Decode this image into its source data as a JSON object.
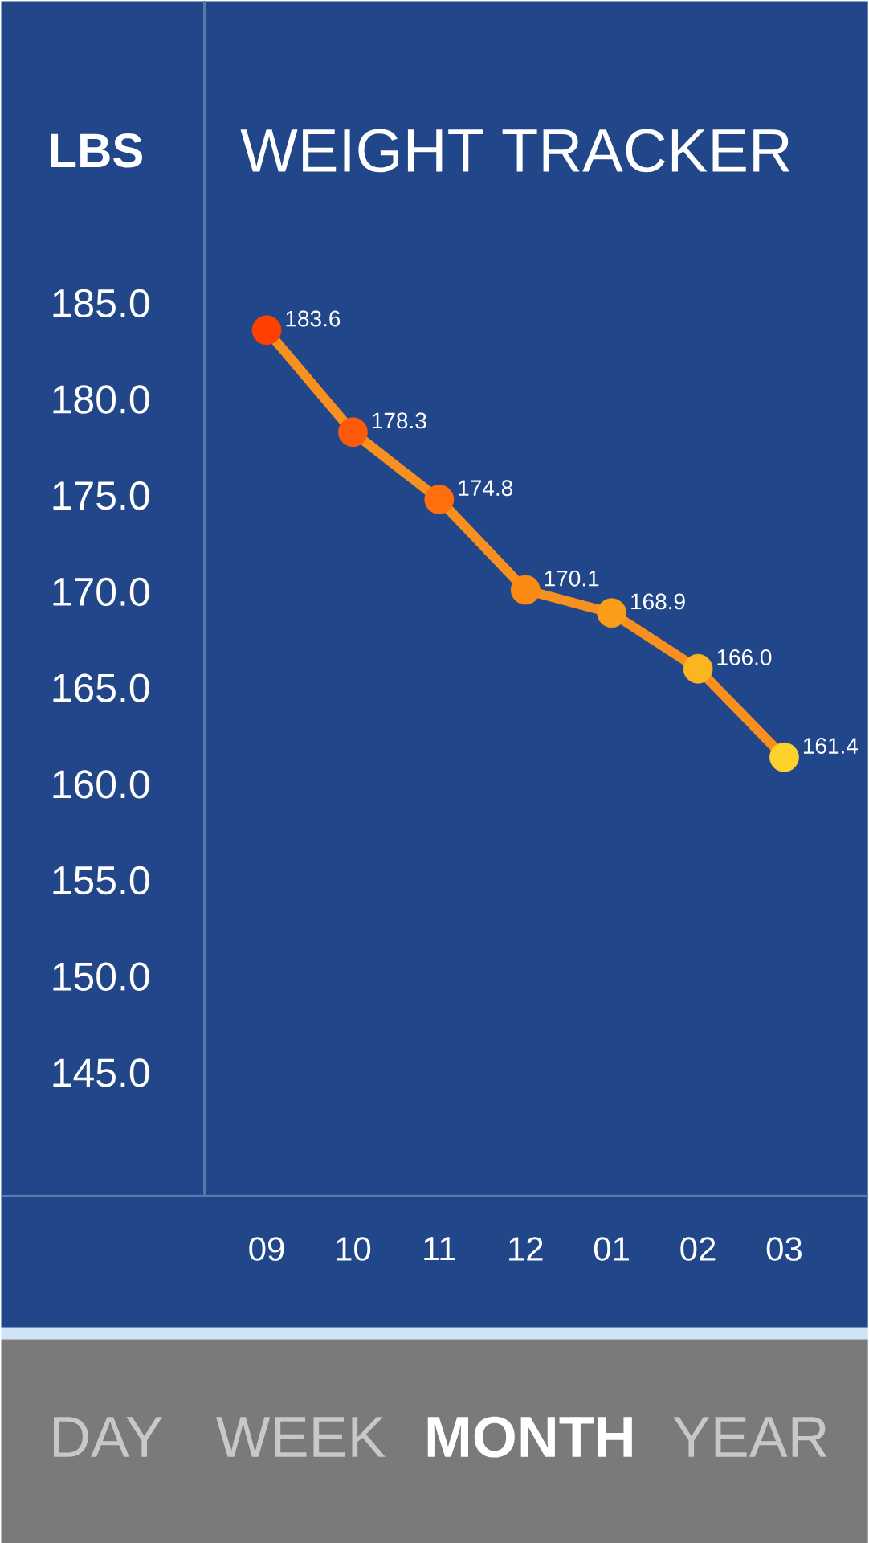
{
  "chart_data": {
    "type": "line",
    "title": "WEIGHT TRACKER",
    "ylabel": "LBS",
    "categories": [
      "09",
      "10",
      "11",
      "12",
      "01",
      "02",
      "03"
    ],
    "values": [
      183.6,
      178.3,
      174.8,
      170.1,
      168.9,
      166.0,
      161.4
    ],
    "value_labels": [
      "183.6",
      "178.3",
      "174.8",
      "170.1",
      "168.9",
      "166.0",
      "161.4"
    ],
    "color": "#f7901e",
    "colors": [
      "#ff4000",
      "#ff5a0a",
      "#ff700c",
      "#fb8a14",
      "#fb9c1a",
      "#fbb521",
      "#fdd22a"
    ],
    "marker": "circle",
    "line_style": "solid",
    "ylim": [
      138.6,
      200.7
    ],
    "yticks": [
      {
        "value": 145,
        "label": "145.0"
      },
      {
        "value": 150,
        "label": "150.0"
      },
      {
        "value": 155,
        "label": "155.0"
      },
      {
        "value": 160,
        "label": "160.0"
      },
      {
        "value": 165,
        "label": "165.0"
      },
      {
        "value": 170,
        "label": "170.0"
      },
      {
        "value": 175,
        "label": "175.0"
      },
      {
        "value": 180,
        "label": "180.0"
      },
      {
        "value": 185,
        "label": "185.0"
      }
    ],
    "grid": false,
    "annotations": [
      "DAY",
      "WEEK",
      "MONTH",
      "YEAR"
    ]
  }
}
